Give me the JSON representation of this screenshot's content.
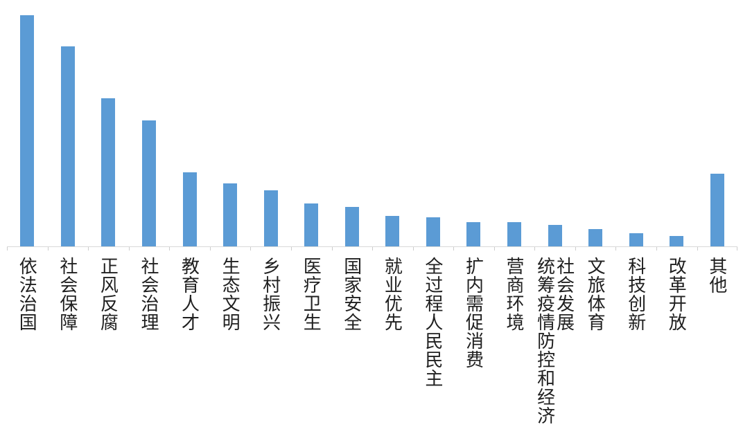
{
  "chart_data": {
    "type": "bar",
    "title": "",
    "xlabel": "",
    "ylabel": "",
    "categories": [
      "依法治国",
      "社会保障",
      "正风反腐",
      "社会治理",
      "教育人才",
      "生态文明",
      "乡村振兴",
      "医疗卫生",
      "国家安全",
      "就业优先",
      "全过程人民民主",
      "扩内需促消费",
      "营商环境",
      "统筹疫情防控和经济社会发展",
      "文旅体育",
      "科技创新",
      "改革开放",
      "其他"
    ],
    "values": [
      334,
      289,
      214,
      182,
      107,
      91,
      81,
      62,
      57,
      44,
      42,
      35,
      35,
      31,
      25,
      19,
      15,
      105
    ],
    "ylim": [
      0,
      356
    ],
    "grid": false,
    "legend": null,
    "value_axis_shown": false,
    "note": "no value axis or data labels shown; values are relative bar heights read from pixels",
    "bar_color": "#5B9BD5",
    "axis_color": "#D9D9D9",
    "tick_color": "#CDCDCD",
    "label_color": "#1F1F1F",
    "background": "#FFFFFF"
  }
}
